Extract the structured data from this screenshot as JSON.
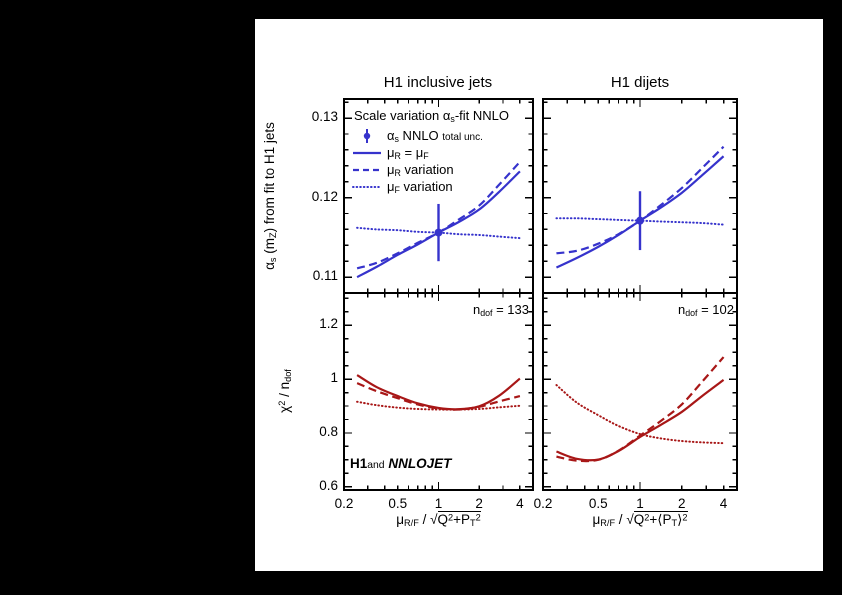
{
  "colors": {
    "blue": "#3633cc",
    "dark_red": "#a81717",
    "frame": "#000000",
    "canvas_bg": "#ffffff",
    "page_bg": "#000000"
  },
  "titles": {
    "left": "H1 inclusive jets",
    "right": "H1 dijets"
  },
  "legend": {
    "header_parts": [
      {
        "t": "Scale variation α"
      },
      {
        "t": "s",
        "sub": true
      },
      {
        "t": "-fit NNLO"
      }
    ],
    "items": [
      {
        "marker": "point-errorbar",
        "label_parts": [
          {
            "t": "α"
          },
          {
            "t": "s",
            "sub": true
          },
          {
            "t": " NNLO "
          },
          {
            "t": "total unc.",
            "small": true
          }
        ]
      },
      {
        "marker": "solid-line",
        "label_parts": [
          {
            "t": "μ"
          },
          {
            "t": "R",
            "sub": true
          },
          {
            "t": " = μ"
          },
          {
            "t": "F",
            "sub": true
          }
        ]
      },
      {
        "marker": "dashed-line",
        "label_parts": [
          {
            "t": "μ"
          },
          {
            "t": "R",
            "sub": true
          },
          {
            "t": " variation"
          }
        ]
      },
      {
        "marker": "dotted-line",
        "label_parts": [
          {
            "t": "μ"
          },
          {
            "t": "F",
            "sub": true
          },
          {
            "t": " variation"
          }
        ]
      }
    ]
  },
  "labels": {
    "y_top_parts": [
      {
        "t": "α"
      },
      {
        "t": "s",
        "sub": true
      },
      {
        "t": " (m"
      },
      {
        "t": "Z",
        "sub": true
      },
      {
        "t": ") from fit to H1 jets"
      }
    ],
    "y_bottom_parts": [
      {
        "t": "χ"
      },
      {
        "t": "2",
        "sup": true
      },
      {
        "t": " / n"
      },
      {
        "t": "dof",
        "sub": true
      }
    ],
    "x_left_parts": [
      {
        "t": "μ"
      },
      {
        "t": "R/F",
        "sub": true
      },
      {
        "t": " / "
      },
      {
        "t": "√"
      },
      {
        "ov": true,
        "parts": [
          {
            "t": "Q"
          },
          {
            "t": "2",
            "sup": true
          },
          {
            "t": "+P"
          },
          {
            "t": "T",
            "sub": true
          },
          {
            "t": "2",
            "sup": true
          }
        ]
      }
    ],
    "x_right_parts": [
      {
        "t": "μ"
      },
      {
        "t": "R/F",
        "sub": true
      },
      {
        "t": " / "
      },
      {
        "t": "√"
      },
      {
        "ov": true,
        "parts": [
          {
            "t": "Q"
          },
          {
            "t": "2",
            "sup": true
          },
          {
            "t": "+⟨P"
          },
          {
            "t": "T",
            "sub": true
          },
          {
            "t": "⟩"
          },
          {
            "t": "2",
            "sup": true
          }
        ]
      }
    ],
    "ndof_left_parts": [
      {
        "t": "n"
      },
      {
        "t": "dof",
        "sub": true
      },
      {
        "t": " = 133"
      }
    ],
    "ndof_right_parts": [
      {
        "t": "n"
      },
      {
        "t": "dof",
        "sub": true
      },
      {
        "t": " = 102"
      }
    ],
    "watermark_parts": [
      {
        "t": "H1",
        "b": true
      },
      {
        "t": "and",
        "small": true
      },
      {
        "t": " "
      },
      {
        "t": "NNLOJET",
        "bi": true
      }
    ]
  },
  "chart_data": [
    {
      "id": "top_left",
      "type": "line",
      "title": "H1 inclusive jets",
      "x_scale": "log",
      "xlim": [
        0.2,
        5.0
      ],
      "ylim": [
        0.108,
        0.1324
      ],
      "ylabel_text": "alpha_s(m_Z) from fit to H1 jets",
      "yticks": [
        0.11,
        0.12,
        0.13
      ],
      "ytick_labels": [
        "0.11",
        "0.12",
        "0.13"
      ],
      "ytick_minor_step": 0.002,
      "xticks": [
        0.2,
        0.5,
        1,
        2,
        4
      ],
      "xtick_labels": [
        "0.2",
        "0.5",
        "1",
        "2",
        "4"
      ],
      "color": "blue",
      "x": [
        0.25,
        0.35,
        0.5,
        0.7,
        1,
        1.4,
        2,
        2.8,
        4
      ],
      "series": [
        {
          "name": "muR = muF",
          "style": "solid",
          "values": [
            0.11,
            0.1113,
            0.1128,
            0.1141,
            0.1156,
            0.1169,
            0.1185,
            0.1207,
            0.1233
          ]
        },
        {
          "name": "muR variation",
          "style": "dashed",
          "values": [
            0.1111,
            0.1118,
            0.113,
            0.1143,
            0.1156,
            0.1172,
            0.119,
            0.1216,
            0.1245
          ]
        },
        {
          "name": "muF variation",
          "style": "dotted",
          "values": [
            0.1162,
            0.116,
            0.1159,
            0.1157,
            0.1156,
            0.1154,
            0.1153,
            0.1151,
            0.1149
          ]
        }
      ],
      "data_point": {
        "x": 1,
        "y": 0.1156,
        "yerr": 0.0036,
        "label": "alpha_s NNLO total unc."
      }
    },
    {
      "id": "top_right",
      "type": "line",
      "title": "H1 dijets",
      "x_scale": "log",
      "xlim": [
        0.2,
        5.0
      ],
      "ylim": [
        0.108,
        0.1324
      ],
      "yticks": [
        0.11,
        0.12,
        0.13
      ],
      "ytick_labels": [
        "0.11",
        "0.12",
        "0.13"
      ],
      "ytick_minor_step": 0.002,
      "xticks": [
        0.2,
        0.5,
        1,
        2,
        4
      ],
      "xtick_labels": [
        "0.2",
        "0.5",
        "1",
        "2",
        "4"
      ],
      "color": "blue",
      "x": [
        0.25,
        0.35,
        0.5,
        0.7,
        1,
        1.4,
        2,
        2.8,
        4
      ],
      "series": [
        {
          "name": "muR = muF",
          "style": "solid",
          "values": [
            0.1112,
            0.1124,
            0.1138,
            0.1153,
            0.1171,
            0.1187,
            0.1206,
            0.1228,
            0.1252
          ]
        },
        {
          "name": "muR variation",
          "style": "dashed",
          "values": [
            0.113,
            0.1133,
            0.1142,
            0.1154,
            0.1171,
            0.119,
            0.1212,
            0.1237,
            0.1264
          ]
        },
        {
          "name": "muF variation",
          "style": "dotted",
          "values": [
            0.1174,
            0.1174,
            0.1173,
            0.1172,
            0.1171,
            0.117,
            0.1169,
            0.1168,
            0.1166
          ]
        }
      ],
      "data_point": {
        "x": 1,
        "y": 0.1171,
        "yerr": 0.0037,
        "label": "alpha_s NNLO total unc."
      }
    },
    {
      "id": "bottom_left",
      "type": "line",
      "title": "chi2/ndof inclusive jets",
      "ndof": 133,
      "x_scale": "log",
      "xlim": [
        0.2,
        5.0
      ],
      "ylim": [
        0.588,
        1.32
      ],
      "ylabel_text": "chi2 / ndof",
      "xlabel_text": "mu_R/F / sqrt(Q2+PT2)",
      "yticks": [
        0.6,
        0.8,
        1.0,
        1.2
      ],
      "ytick_labels": [
        "0.6",
        "0.8",
        "1",
        "1.2"
      ],
      "ytick_minor_step": 0.05,
      "xticks": [
        0.2,
        0.5,
        1,
        2,
        4
      ],
      "xtick_labels": [
        "0.2",
        "0.5",
        "1",
        "2",
        "4"
      ],
      "color": "dark_red",
      "x": [
        0.25,
        0.35,
        0.5,
        0.7,
        1,
        1.4,
        2,
        2.8,
        4
      ],
      "series": [
        {
          "name": "muR = muF",
          "style": "solid",
          "values": [
            1.015,
            0.97,
            0.937,
            0.91,
            0.893,
            0.888,
            0.899,
            0.938,
            1.002
          ]
        },
        {
          "name": "muR variation",
          "style": "dashed",
          "values": [
            0.985,
            0.955,
            0.929,
            0.906,
            0.891,
            0.887,
            0.897,
            0.917,
            0.937
          ]
        },
        {
          "name": "muF variation",
          "style": "dotted",
          "values": [
            0.916,
            0.903,
            0.894,
            0.889,
            0.887,
            0.887,
            0.889,
            0.895,
            0.901
          ]
        }
      ]
    },
    {
      "id": "bottom_right",
      "type": "line",
      "title": "chi2/ndof dijets",
      "ndof": 102,
      "x_scale": "log",
      "xlim": [
        0.2,
        5.0
      ],
      "ylim": [
        0.588,
        1.32
      ],
      "xlabel_text": "mu_R/F / sqrt(Q2+(PT)2)",
      "yticks": [
        0.6,
        0.8,
        1.0,
        1.2
      ],
      "ytick_labels": [
        "0.6",
        "0.8",
        "1",
        "1.2"
      ],
      "ytick_minor_step": 0.05,
      "xticks": [
        0.2,
        0.5,
        1,
        2,
        4
      ],
      "xtick_labels": [
        "0.2",
        "0.5",
        "1",
        "2",
        "4"
      ],
      "color": "dark_red",
      "x": [
        0.25,
        0.35,
        0.5,
        0.7,
        1,
        1.4,
        2,
        2.8,
        4
      ],
      "series": [
        {
          "name": "muR = muF",
          "style": "solid",
          "values": [
            0.731,
            0.704,
            0.701,
            0.733,
            0.785,
            0.829,
            0.878,
            0.937,
            0.997
          ]
        },
        {
          "name": "muR variation",
          "style": "dashed",
          "values": [
            0.712,
            0.697,
            0.7,
            0.734,
            0.79,
            0.843,
            0.906,
            0.99,
            1.082
          ]
        },
        {
          "name": "muF variation",
          "style": "dotted",
          "values": [
            0.978,
            0.913,
            0.866,
            0.826,
            0.796,
            0.78,
            0.77,
            0.765,
            0.762
          ]
        }
      ]
    }
  ]
}
